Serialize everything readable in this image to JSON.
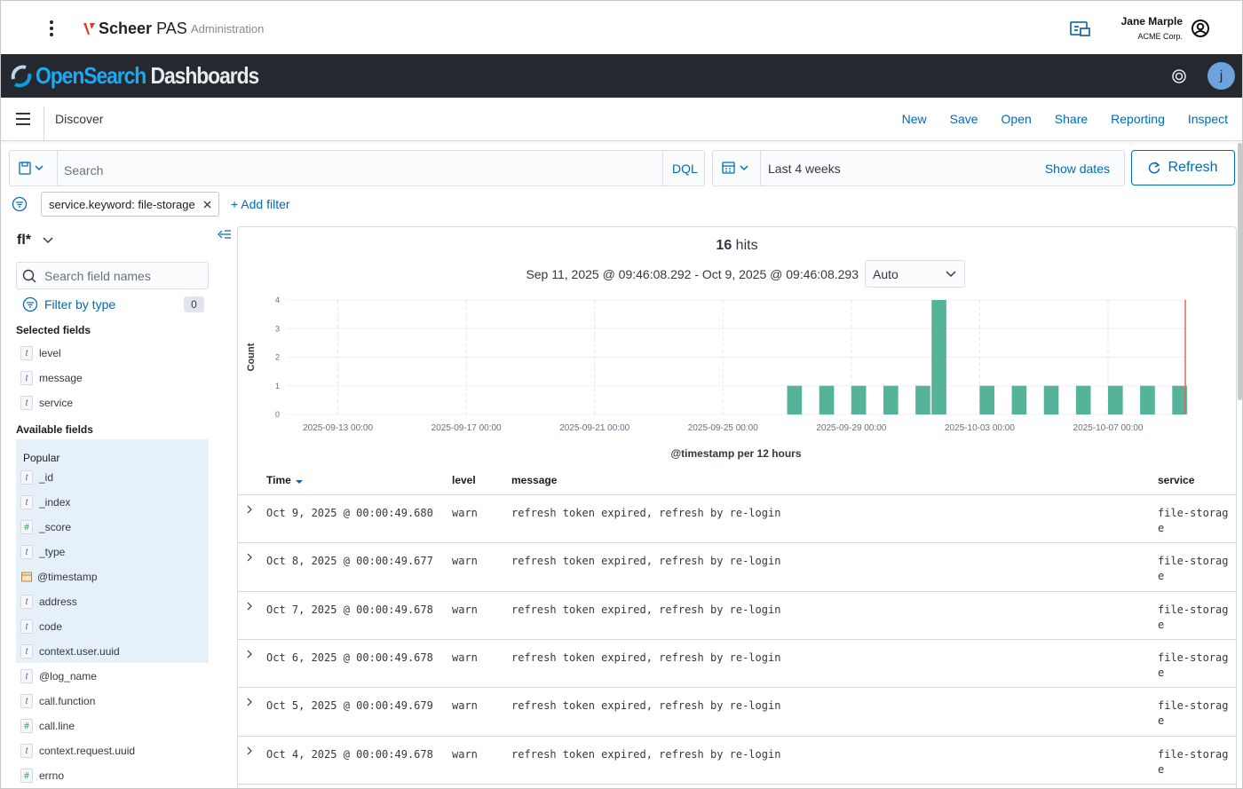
{
  "app_header": {
    "brand": "Scheer",
    "product": "PAS",
    "section": "Administration",
    "user_name": "Jane Marple",
    "user_org": "ACME Corp."
  },
  "osd_header": {
    "logo_primary": "OpenSearch",
    "logo_secondary": "Dashboards",
    "avatar": "j"
  },
  "nav": {
    "title": "Discover",
    "actions": [
      "New",
      "Save",
      "Open",
      "Share",
      "Reporting",
      "Inspect"
    ]
  },
  "query_bar": {
    "placeholder": "Search",
    "language": "DQL",
    "time_range": "Last 4 weeks",
    "show_dates": "Show dates",
    "refresh": "Refresh"
  },
  "filters": {
    "pills": [
      "service.keyword: file-storage"
    ],
    "add": "+ Add filter"
  },
  "sidebar": {
    "index_pattern": "fl*",
    "search_placeholder": "Search field names",
    "filter_by_type": "Filter by type",
    "filter_count": 0,
    "selected_title": "Selected fields",
    "selected": [
      {
        "icon": "t",
        "name": "level"
      },
      {
        "icon": "t",
        "name": "message"
      },
      {
        "icon": "t",
        "name": "service"
      }
    ],
    "available_title": "Available fields",
    "popular_title": "Popular",
    "popular": [
      {
        "icon": "t",
        "name": "_id"
      },
      {
        "icon": "t",
        "name": "_index"
      },
      {
        "icon": "#",
        "name": "_score"
      },
      {
        "icon": "t",
        "name": "_type"
      },
      {
        "icon": "date",
        "name": "@timestamp"
      },
      {
        "icon": "t",
        "name": "address"
      },
      {
        "icon": "t",
        "name": "code"
      },
      {
        "icon": "t",
        "name": "context.user.uuid"
      }
    ],
    "other": [
      {
        "icon": "t",
        "name": "@log_name"
      },
      {
        "icon": "t",
        "name": "call.function"
      },
      {
        "icon": "#",
        "name": "call.line"
      },
      {
        "icon": "t",
        "name": "context.request.uuid"
      },
      {
        "icon": "#",
        "name": "errno"
      }
    ]
  },
  "hits": {
    "count": 16,
    "label": "hits",
    "range": "Sep 11, 2025 @ 09:46:08.292 - Oct 9, 2025 @ 09:46:08.293",
    "interval": "Auto"
  },
  "chart_data": {
    "type": "bar",
    "x": [
      "2025-09-27 00:00",
      "2025-09-28 00:00",
      "2025-09-29 00:00",
      "2025-09-30 00:00",
      "2025-10-01 00:00",
      "2025-10-01 12:00",
      "2025-10-03 00:00",
      "2025-10-04 00:00",
      "2025-10-05 00:00",
      "2025-10-06 00:00",
      "2025-10-07 00:00",
      "2025-10-08 00:00",
      "2025-10-09 00:00"
    ],
    "values": [
      1,
      1,
      1,
      1,
      1,
      4,
      1,
      1,
      1,
      1,
      1,
      1,
      1
    ],
    "color": "#54b399",
    "now_color": "#e7664c",
    "xlim": [
      "2025-09-11 09:46",
      "2025-10-09 09:46"
    ],
    "xticks": [
      "2025-09-13 00:00",
      "2025-09-17 00:00",
      "2025-09-21 00:00",
      "2025-09-25 00:00",
      "2025-09-29 00:00",
      "2025-10-03 00:00",
      "2025-10-07 00:00"
    ],
    "ylim": [
      0,
      4
    ],
    "yticks": [
      0,
      1,
      2,
      3,
      4
    ],
    "xlabel": "@timestamp per 12 hours",
    "ylabel": "Count",
    "grid": true
  },
  "table": {
    "columns": [
      "Time",
      "level",
      "message",
      "service"
    ],
    "rows": [
      [
        "Oct 9, 2025 @ 00:00:49.680",
        "warn",
        "refresh token expired, refresh by re-login",
        "file-storage"
      ],
      [
        "Oct 8, 2025 @ 00:00:49.677",
        "warn",
        "refresh token expired, refresh by re-login",
        "file-storage"
      ],
      [
        "Oct 7, 2025 @ 00:00:49.678",
        "warn",
        "refresh token expired, refresh by re-login",
        "file-storage"
      ],
      [
        "Oct 6, 2025 @ 00:00:49.678",
        "warn",
        "refresh token expired, refresh by re-login",
        "file-storage"
      ],
      [
        "Oct 5, 2025 @ 00:00:49.679",
        "warn",
        "refresh token expired, refresh by re-login",
        "file-storage"
      ],
      [
        "Oct 4, 2025 @ 00:00:49.678",
        "warn",
        "refresh token expired, refresh by re-login",
        "file-storage"
      ]
    ]
  }
}
